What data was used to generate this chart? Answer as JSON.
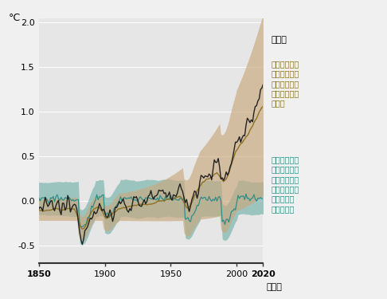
{
  "ylabel": "°C",
  "xlim": [
    1850,
    2020
  ],
  "ylim": [
    -0.7,
    2.05
  ],
  "yticks": [
    -0.5,
    0.0,
    0.5,
    1.0,
    1.5,
    2.0
  ],
  "xticks": [
    1850,
    1900,
    1950,
    2000,
    2020
  ],
  "xtick_labels": [
    "1850",
    "1900",
    "1950",
    "2000",
    "2020"
  ],
  "bg_color": "#e6e6e6",
  "fig_color": "#f0f0f0",
  "anthro_fill_color": "#c9a87c",
  "natural_fill_color": "#5fa89e",
  "obs_color": "#1a1a1a",
  "anthro_line_color": "#8b6e1e",
  "natural_line_color": "#2a8a88",
  "legend_obs": "観測値",
  "legend_anthro": "人為起源と自\n然起源の要因\nを考慮したシ\nミュレーショ\nン結果",
  "legend_natural": "自然起源の要\n因（太陽及び\n火山活動）の\nみを考慮した\nシミュレー\nション結果"
}
